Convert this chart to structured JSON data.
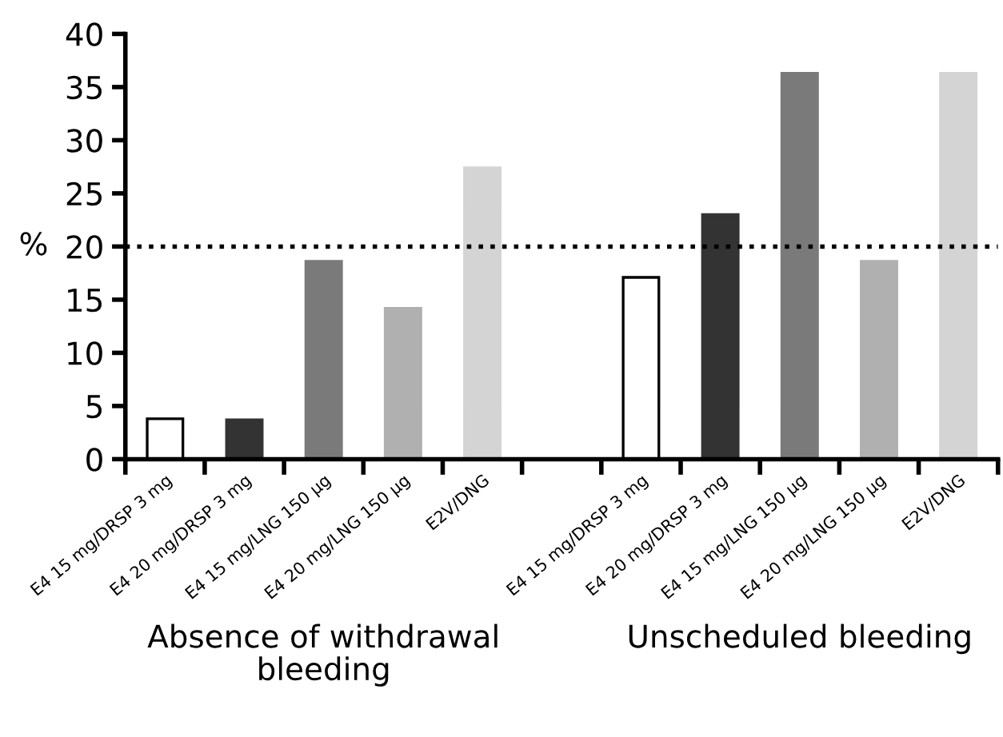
{
  "chart_data": {
    "type": "bar",
    "ylabel": "%",
    "categories": [
      "E4 15 mg/DRSP 3 mg",
      "E4 20 mg/DRSP 3 mg",
      "E4 15 mg/LNG 150 µg",
      "E4 20 mg/LNG 150 µg",
      "E2V/DNG",
      null,
      "E4 15 mg/DRSP 3 mg",
      "E4 20 mg/DRSP 3 mg",
      "E4 15 mg/LNG 150 µg",
      "E4 20 mg/LNG 150 µg",
      "E2V/DNG"
    ],
    "values": [
      3.8,
      3.7,
      18.6,
      14.2,
      27.4,
      null,
      17.1,
      23.0,
      36.3,
      18.6,
      36.3
    ],
    "colors": [
      "#ffffff",
      "#333333",
      "#7a7a7a",
      "#b0b0b0",
      "#d4d4d4",
      "#ffffff",
      "#ffffff",
      "#333333",
      "#7a7a7a",
      "#b0b0b0",
      "#d4d4d4"
    ],
    "ylim": [
      0,
      40
    ],
    "yticks": [
      0,
      5,
      10,
      15,
      20,
      25,
      30,
      35,
      40
    ],
    "ref_lines": [
      {
        "axis": "y",
        "value": 20,
        "line_style": "dotted",
        "color": "#000000"
      }
    ],
    "annotations": [
      "Absence of withdrawal bleeding",
      "Unscheduled bleeding"
    ],
    "grid": false
  }
}
